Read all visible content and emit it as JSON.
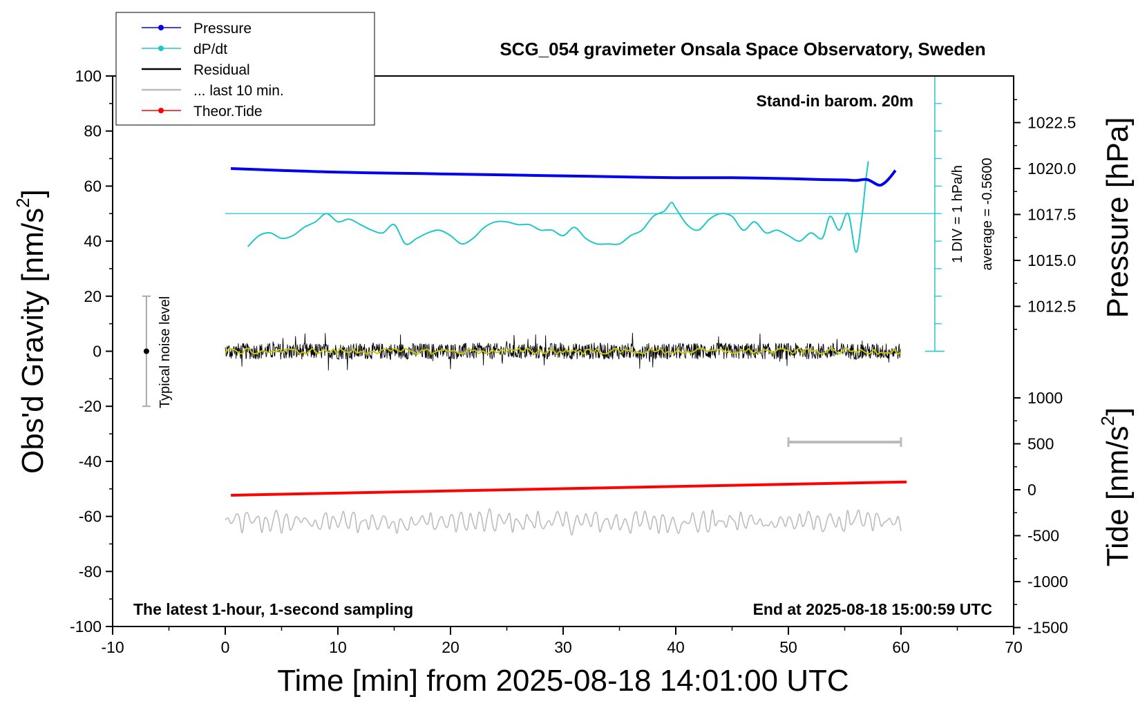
{
  "chart_data": {
    "type": "line",
    "title": "SCG_054 gravimeter Onsala Space Observatory, Sweden",
    "xlabel": "Time [min] from 2025-08-18 14:01:00 UTC",
    "ylabel": "Obs'd Gravity [nm/s",
    "ylabel_sup": "2",
    "ylabel_close": "]",
    "y2label": "Pressure [hPa]",
    "y3label": "Tide [nm/s",
    "y3label_sup": "2",
    "y3label_close": "]",
    "xlim": [
      -10,
      70
    ],
    "ylim": [
      -100,
      100
    ],
    "y2lim": [
      1010.0,
      1025.0
    ],
    "y3lim": [
      -1500,
      1500
    ],
    "xticks": [
      "-10",
      "0",
      "10",
      "20",
      "30",
      "40",
      "50",
      "60",
      "70"
    ],
    "yticks": [
      "-100",
      "-80",
      "-60",
      "-40",
      "-20",
      "0",
      "20",
      "40",
      "60",
      "80",
      "100"
    ],
    "y2ticks": [
      "1012.5",
      "1015.0",
      "1017.5",
      "1020.0",
      "1022.5"
    ],
    "y3ticks": [
      "-1500",
      "-1000",
      "-500",
      "0",
      "500",
      "1000"
    ],
    "grid": false,
    "legend_position": "top-left",
    "legend": [
      {
        "label": "Pressure",
        "color": "#0000ee",
        "marker": true
      },
      {
        "label": "dP/dt",
        "color": "#1ec8c8",
        "marker": true
      },
      {
        "label": "Residual",
        "color": "#000000",
        "marker": false
      },
      {
        "label": "... last 10 min.",
        "color": "#bbbbbb",
        "marker": false
      },
      {
        "label": "Theor.Tide",
        "color": "#ff0000",
        "marker": true
      }
    ],
    "annotations": {
      "barometer": "Stand-in barom. 20m",
      "latest": "The latest 1-hour, 1-second sampling",
      "end": "End at 2025-08-18 15:00:59 UTC",
      "noise": "Typical noise level",
      "div": "1 DIV = 1 hPa/h",
      "average": "average = -0.5600"
    },
    "series": [
      {
        "name": "Pressure",
        "axis": "pressure",
        "color": "#0000ee",
        "x": [
          0.5,
          5,
          10,
          15,
          20,
          25,
          30,
          35,
          40,
          45,
          50,
          53,
          55,
          56,
          57,
          58,
          58.5,
          59,
          59.5
        ],
        "values": [
          1020.0,
          1019.9,
          1019.8,
          1019.75,
          1019.7,
          1019.65,
          1019.6,
          1019.55,
          1019.5,
          1019.5,
          1019.45,
          1019.4,
          1019.38,
          1019.35,
          1019.4,
          1019.1,
          1019.2,
          1019.5,
          1019.9
        ]
      },
      {
        "name": "dP/dt",
        "axis": "gravity",
        "color": "#1ec8c8",
        "x": [
          2,
          3,
          4,
          5,
          6,
          7,
          8,
          9,
          10,
          11,
          12,
          13,
          14,
          15,
          16,
          17,
          18,
          19,
          20,
          21,
          22,
          23,
          24,
          25,
          26,
          27,
          28,
          29,
          30,
          31,
          32,
          33,
          34,
          35,
          36,
          37,
          38,
          39,
          39.6,
          40,
          41,
          42,
          43,
          44,
          45,
          46,
          47,
          48,
          49,
          50,
          51,
          52,
          53,
          53.7,
          54.5,
          55.3,
          56,
          56.5,
          56.9,
          57.1
        ],
        "values": [
          38,
          42,
          43,
          41,
          42,
          45,
          47,
          50,
          47,
          48,
          46,
          44,
          43,
          46,
          39,
          41,
          43,
          44,
          42,
          39,
          41,
          45,
          47,
          47,
          46,
          46,
          44,
          44,
          42,
          45,
          41,
          39,
          39,
          39,
          42,
          44,
          49,
          51,
          54,
          52,
          46,
          44,
          48,
          50,
          49,
          44,
          47,
          43,
          44,
          42,
          40,
          43,
          41,
          49,
          44,
          50,
          36,
          48,
          63,
          69
        ]
      },
      {
        "name": "Residual",
        "axis": "gravity",
        "color": "#000000",
        "x_range": [
          0,
          60
        ],
        "center": 0,
        "amplitude_typical": 3,
        "amplitude_max": 7
      },
      {
        "name": "... last 10 min.",
        "axis": "gravity",
        "color": "#bbbbbb",
        "x_range": [
          0,
          60
        ],
        "center": -62,
        "amplitude_typical": 3
      },
      {
        "name": "Theor.Tide",
        "axis": "tide",
        "color": "#ff0000",
        "x": [
          0.5,
          60.5
        ],
        "values": [
          -60,
          85
        ]
      },
      {
        "name": "smoothed residual",
        "axis": "gravity",
        "color": "#c8c800",
        "x_range": [
          0,
          60
        ],
        "center": 0,
        "amplitude_typical": 1
      }
    ],
    "noise_bar": {
      "x": -7,
      "y": 0,
      "low": -20,
      "high": 20
    },
    "dpdt_reference": {
      "x": 63,
      "y_top": 100,
      "y_bottom": 0,
      "level": 50
    },
    "span_bar": {
      "x_start": 50,
      "x_end": 60,
      "y": -33
    }
  }
}
